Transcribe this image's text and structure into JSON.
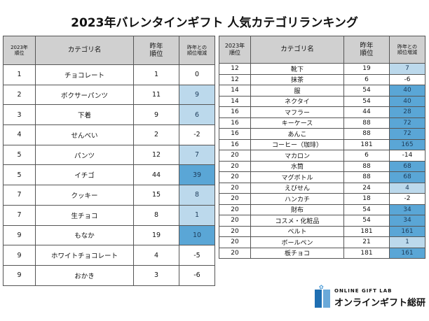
{
  "title": "2023年バレンタインギフト 人気カテゴリランキング",
  "headers": {
    "rank": "2023年\n順位",
    "category": "カテゴリ名",
    "last_rank": "昨年\n順位",
    "change": "昨年との\n順位増減"
  },
  "colors": {
    "light": "#bcd9ec",
    "dark": "#5aa6d6"
  },
  "left_rows": [
    [
      "1",
      "チョコレート",
      "1",
      "0"
    ],
    [
      "2",
      "ボクサーパンツ",
      "11",
      "9"
    ],
    [
      "3",
      "下着",
      "9",
      "6"
    ],
    [
      "4",
      "せんべい",
      "2",
      "-2"
    ],
    [
      "5",
      "パンツ",
      "12",
      "7"
    ],
    [
      "5",
      "イチゴ",
      "44",
      "39"
    ],
    [
      "7",
      "クッキー",
      "15",
      "8"
    ],
    [
      "7",
      "生チョコ",
      "8",
      "1"
    ],
    [
      "9",
      "もなか",
      "19",
      "10"
    ],
    [
      "9",
      "ホワイトチョコレート",
      "4",
      "-5"
    ],
    [
      "9",
      "おかき",
      "3",
      "-6"
    ]
  ],
  "right_rows": [
    [
      "12",
      "靴下",
      "19",
      "7"
    ],
    [
      "12",
      "抹茶",
      "6",
      "-6"
    ],
    [
      "14",
      "服",
      "54",
      "40"
    ],
    [
      "14",
      "ネクタイ",
      "54",
      "40"
    ],
    [
      "16",
      "マフラー",
      "44",
      "28"
    ],
    [
      "16",
      "キーケース",
      "88",
      "72"
    ],
    [
      "16",
      "あんこ",
      "88",
      "72"
    ],
    [
      "16",
      "コーヒー（珈琲）",
      "181",
      "165"
    ],
    [
      "20",
      "マカロン",
      "6",
      "-14"
    ],
    [
      "20",
      "水筒",
      "88",
      "68"
    ],
    [
      "20",
      "マグボトル",
      "88",
      "68"
    ],
    [
      "20",
      "えびせん",
      "24",
      "4"
    ],
    [
      "20",
      "ハンカチ",
      "18",
      "-2"
    ],
    [
      "20",
      "財布",
      "54",
      "34"
    ],
    [
      "20",
      "コスメ・化粧品",
      "54",
      "34"
    ],
    [
      "20",
      "ベルト",
      "181",
      "161"
    ],
    [
      "20",
      "ボールペン",
      "21",
      "1"
    ],
    [
      "20",
      "板チョコ",
      "181",
      "161"
    ]
  ],
  "logo": {
    "small": "ONLINE GIFT LAB",
    "brand": "オンラインギフト総研"
  }
}
